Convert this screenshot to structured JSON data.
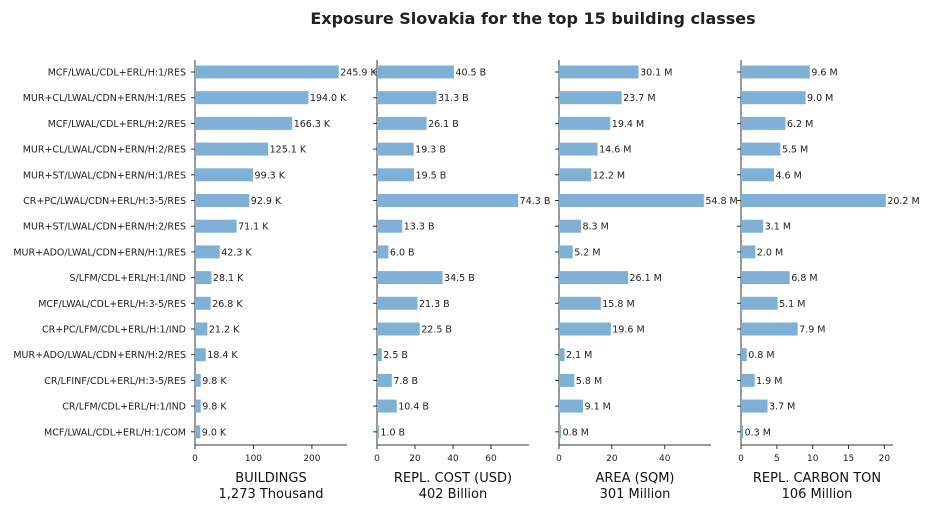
{
  "chart_data": {
    "type": "bar",
    "orientation": "horizontal",
    "title": "Exposure Slovakia for the top 15 building classes",
    "categories": [
      "MCF/LWAL/CDL+ERL/H:1/RES",
      "MUR+CL/LWAL/CDN+ERN/H:1/RES",
      "MCF/LWAL/CDL+ERL/H:2/RES",
      "MUR+CL/LWAL/CDN+ERN/H:2/RES",
      "MUR+ST/LWAL/CDN+ERN/H:1/RES",
      "CR+PC/LWAL/CDN+ERL/H:3-5/RES",
      "MUR+ST/LWAL/CDN+ERN/H:2/RES",
      "MUR+ADO/LWAL/CDN+ERN/H:1/RES",
      "S/LFM/CDL+ERL/H:1/IND",
      "MCF/LWAL/CDL+ERL/H:3-5/RES",
      "CR+PC/LFM/CDL+ERL/H:1/IND",
      "MUR+ADO/LWAL/CDN+ERN/H:2/RES",
      "CR/LFINF/CDL+ERL/H:3-5/RES",
      "CR/LFM/CDL+ERL/H:1/IND",
      "MCF/LWAL/CDL+ERL/H:1/COM"
    ],
    "panels": [
      {
        "xlabel": "BUILDINGS",
        "total": "1,273 Thousand",
        "xlim": [
          0,
          260
        ],
        "ticks": [
          0,
          100,
          200
        ],
        "values": [
          245.9,
          194.0,
          166.3,
          125.1,
          99.3,
          92.9,
          71.1,
          42.3,
          28.1,
          26.8,
          21.2,
          18.4,
          9.8,
          9.8,
          9.0
        ],
        "labels": [
          "245.9 K",
          "194.0 K",
          "166.3 K",
          "125.1 K",
          "99.3 K",
          "92.9 K",
          "71.1 K",
          "42.3 K",
          "28.1 K",
          "26.8 K",
          "21.2 K",
          "18.4 K",
          "9.8 K",
          "9.8 K",
          "9.0 K"
        ]
      },
      {
        "xlabel": "REPL. COST (USD)",
        "total": "402 Billion",
        "xlim": [
          0,
          80
        ],
        "ticks": [
          0,
          20,
          40,
          60
        ],
        "values": [
          40.5,
          31.3,
          26.1,
          19.3,
          19.5,
          74.3,
          13.3,
          6.0,
          34.5,
          21.3,
          22.5,
          2.5,
          7.8,
          10.4,
          1.0
        ],
        "labels": [
          "40.5 B",
          "31.3 B",
          "26.1 B",
          "19.3 B",
          "19.5 B",
          "74.3 B",
          "13.3 B",
          "6.0 B",
          "34.5 B",
          "21.3 B",
          "22.5 B",
          "2.5 B",
          "7.8 B",
          "10.4 B",
          "1.0 B"
        ]
      },
      {
        "xlabel": "AREA (SQM)",
        "total": "301 Million",
        "xlim": [
          0,
          57.5
        ],
        "ticks": [
          0,
          20,
          40
        ],
        "values": [
          30.1,
          23.7,
          19.4,
          14.6,
          12.2,
          54.8,
          8.3,
          5.2,
          26.1,
          15.8,
          19.6,
          2.1,
          5.8,
          9.1,
          0.8
        ],
        "labels": [
          "30.1 M",
          "23.7 M",
          "19.4 M",
          "14.6 M",
          "12.2 M",
          "54.8 M",
          "8.3 M",
          "5.2 M",
          "26.1 M",
          "15.8 M",
          "19.6 M",
          "2.1 M",
          "5.8 M",
          "9.1 M",
          "0.8 M"
        ]
      },
      {
        "xlabel": "REPL. CARBON TON",
        "total": "106 Million",
        "xlim": [
          0,
          21.2
        ],
        "ticks": [
          0,
          5,
          10,
          15,
          20
        ],
        "values": [
          9.6,
          9.0,
          6.2,
          5.5,
          4.6,
          20.2,
          3.1,
          2.0,
          6.8,
          5.1,
          7.9,
          0.8,
          1.9,
          3.7,
          0.3
        ],
        "labels": [
          "9.6 M",
          "9.0 M",
          "6.2 M",
          "5.5 M",
          "4.6 M",
          "20.2 M",
          "3.1 M",
          "2.0 M",
          "6.8 M",
          "5.1 M",
          "7.9 M",
          "0.8 M",
          "1.9 M",
          "3.7 M",
          "0.3 M"
        ]
      }
    ],
    "colors": {
      "bar": "#7fb0d5",
      "axis": "#333333",
      "text": "#222222"
    },
    "grid": false,
    "legend": "none"
  }
}
